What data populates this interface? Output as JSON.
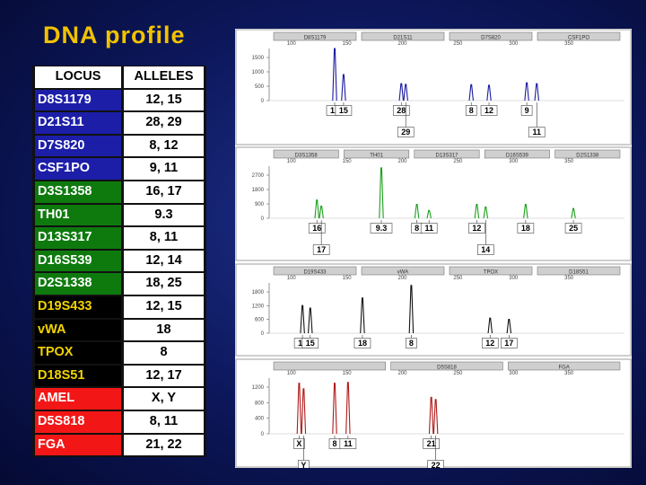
{
  "title": "DNA profile",
  "table": {
    "header": {
      "locus": "LOCUS",
      "alleles": "ALLELES"
    },
    "rows": [
      {
        "locus": "D8S1179",
        "alleles": "12, 15",
        "group": "blue"
      },
      {
        "locus": "D21S11",
        "alleles": "28, 29",
        "group": "blue"
      },
      {
        "locus": "D7S820",
        "alleles": "8, 12",
        "group": "blue"
      },
      {
        "locus": "CSF1PO",
        "alleles": "9, 11",
        "group": "blue"
      },
      {
        "locus": "D3S1358",
        "alleles": "16, 17",
        "group": "green"
      },
      {
        "locus": "TH01",
        "alleles": "9.3",
        "group": "green"
      },
      {
        "locus": "D13S317",
        "alleles": "8, 11",
        "group": "green"
      },
      {
        "locus": "D16S539",
        "alleles": "12, 14",
        "group": "green"
      },
      {
        "locus": "D2S1338",
        "alleles": "18, 25",
        "group": "green"
      },
      {
        "locus": "D19S433",
        "alleles": "12, 15",
        "group": "black"
      },
      {
        "locus": "vWA",
        "alleles": "18",
        "group": "black"
      },
      {
        "locus": "TPOX",
        "alleles": "8",
        "group": "black"
      },
      {
        "locus": "D18S51",
        "alleles": "12, 17",
        "group": "black"
      },
      {
        "locus": "AMEL",
        "alleles": "X, Y",
        "group": "red"
      },
      {
        "locus": "D5S818",
        "alleles": "8, 11",
        "group": "red"
      },
      {
        "locus": "FGA",
        "alleles": "21, 22",
        "group": "red"
      }
    ]
  },
  "colors": {
    "blue": "#1c1ea8",
    "green": "#0e7a0e",
    "black": "#000000",
    "red": "#f21616",
    "title": "#f2c200",
    "black_text": "#f2d400"
  },
  "chart_data": [
    {
      "type": "line",
      "color": "#1a1aa0",
      "xlim": [
        80,
        400
      ],
      "xticks": [
        "100",
        "150",
        "200",
        "250",
        "300",
        "350"
      ],
      "yticks": [
        "1500",
        "1000",
        "500",
        "0"
      ],
      "ylim": [
        0,
        1700
      ],
      "loci": [
        "D8S1179",
        "D21S11",
        "D7S820",
        "CSF1PO"
      ],
      "peaks": [
        {
          "x": 139,
          "h": 1750,
          "label": "12",
          "row": 0
        },
        {
          "x": 147,
          "h": 850,
          "label": "15",
          "row": 0
        },
        {
          "x": 199,
          "h": 550,
          "label": "28",
          "row": 0
        },
        {
          "x": 203,
          "h": 530,
          "label": "29",
          "row": 1
        },
        {
          "x": 262,
          "h": 520,
          "label": "8",
          "row": 0
        },
        {
          "x": 278,
          "h": 500,
          "label": "12",
          "row": 0
        },
        {
          "x": 312,
          "h": 580,
          "label": "9",
          "row": 0
        },
        {
          "x": 321,
          "h": 550,
          "label": "11",
          "row": 1
        }
      ]
    },
    {
      "type": "line",
      "color": "#1aa01a",
      "xlim": [
        80,
        400
      ],
      "xticks": [
        "100",
        "150",
        "200",
        "250",
        "300",
        "350"
      ],
      "yticks": [
        "2700",
        "1800",
        "900",
        "0"
      ],
      "ylim": [
        0,
        3000
      ],
      "loci": [
        "D3S1358",
        "TH01",
        "D13S317",
        "D16S539",
        "D2S1338"
      ],
      "peaks": [
        {
          "x": 123,
          "h": 1050,
          "label": "16",
          "row": 0
        },
        {
          "x": 127,
          "h": 700,
          "label": "17",
          "row": 1
        },
        {
          "x": 181,
          "h": 2900,
          "label": "9.3",
          "row": 0
        },
        {
          "x": 213,
          "h": 800,
          "label": "8",
          "row": 0
        },
        {
          "x": 224,
          "h": 450,
          "label": "11",
          "row": 0
        },
        {
          "x": 267,
          "h": 800,
          "label": "12",
          "row": 0
        },
        {
          "x": 275,
          "h": 650,
          "label": "14",
          "row": 1
        },
        {
          "x": 311,
          "h": 800,
          "label": "18",
          "row": 0
        },
        {
          "x": 354,
          "h": 560,
          "label": "25",
          "row": 0
        }
      ]
    },
    {
      "type": "line",
      "color": "#111111",
      "xlim": [
        80,
        400
      ],
      "xticks": [
        "100",
        "150",
        "200",
        "250",
        "300",
        "350"
      ],
      "yticks": [
        "1800",
        "1200",
        "600",
        "0"
      ],
      "ylim": [
        0,
        2000
      ],
      "loci": [
        "D19S433",
        "vWA",
        "TPOX",
        "D18S51"
      ],
      "peaks": [
        {
          "x": 110,
          "h": 1100,
          "label": "12",
          "row": 0
        },
        {
          "x": 117,
          "h": 1000,
          "label": "15",
          "row": 0
        },
        {
          "x": 164,
          "h": 1400,
          "label": "18",
          "row": 0
        },
        {
          "x": 208,
          "h": 1900,
          "label": "8",
          "row": 0
        },
        {
          "x": 279,
          "h": 600,
          "label": "12",
          "row": 0
        },
        {
          "x": 296,
          "h": 550,
          "label": "17",
          "row": 0
        }
      ]
    },
    {
      "type": "line",
      "color": "#b01a1a",
      "xlim": [
        80,
        400
      ],
      "xticks": [
        "100",
        "150",
        "200",
        "250",
        "300",
        "350"
      ],
      "yticks": [
        "1200",
        "800",
        "400",
        "0"
      ],
      "ylim": [
        0,
        1300
      ],
      "loci": [
        "",
        "D5S818",
        "FGA"
      ],
      "peaks": [
        {
          "x": 107,
          "h": 1180,
          "label": "X",
          "row": 0
        },
        {
          "x": 111,
          "h": 1050,
          "label": "Y",
          "row": 1
        },
        {
          "x": 139,
          "h": 1180,
          "label": "8",
          "row": 0
        },
        {
          "x": 151,
          "h": 1200,
          "label": "11",
          "row": 0
        },
        {
          "x": 226,
          "h": 850,
          "label": "21",
          "row": 0
        },
        {
          "x": 230,
          "h": 800,
          "label": "22",
          "row": 1
        }
      ]
    }
  ]
}
